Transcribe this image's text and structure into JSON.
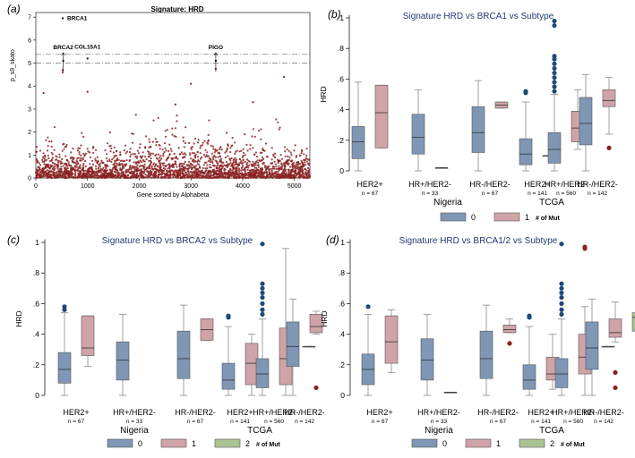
{
  "colors": {
    "c0": "#7f97b5",
    "c1": "#cfa3a8",
    "c2": "#a9c395",
    "outlier0": "#1d4a7a",
    "outlier1": "#8b2323",
    "scatter": "#8b2323",
    "title": "#1f3b75"
  },
  "chart_data": [
    {
      "id": "a",
      "type": "scatter",
      "panel_label": "(a)",
      "title": "Signature: HRD",
      "xlabel": "Gene sorted by Alphabeta",
      "ylabel": "p_s9_skato",
      "xlim": [
        0,
        5300
      ],
      "ylim": [
        0,
        7.2
      ],
      "xticks": [
        0,
        1000,
        2000,
        3000,
        4000,
        5000
      ],
      "yticks": [
        0,
        1,
        2,
        3,
        4,
        5,
        6,
        7
      ],
      "thresholds": [
        5.0,
        5.4
      ],
      "points_note": "approximately 5300 genes, most with values between 0 and 2",
      "highlights": [
        {
          "gene": "BRCA1",
          "x": 520,
          "y": 6.95
        },
        {
          "gene": "BRCA2",
          "x": 530,
          "y": 5.1
        },
        {
          "gene": "COL15A1",
          "x": 1000,
          "y": 5.2
        },
        {
          "gene": "PIGO",
          "x": 3480,
          "y": 5.1
        }
      ],
      "notable_points": [
        {
          "x": 520,
          "y": 4.7
        },
        {
          "x": 520,
          "y": 4.6
        },
        {
          "x": 1000,
          "y": 3.75
        },
        {
          "x": 150,
          "y": 3.7
        },
        {
          "x": 3000,
          "y": 4.1
        },
        {
          "x": 3480,
          "y": 4.75
        },
        {
          "x": 4800,
          "y": 4.4
        },
        {
          "x": 2700,
          "y": 3.2
        },
        {
          "x": 4200,
          "y": 3.3
        }
      ]
    },
    {
      "id": "b",
      "type": "box",
      "panel_label": "(b)",
      "title": "Signature HRD vs BRCA1 vs Subtype",
      "ylabel": "HRD",
      "ylim": [
        0,
        1
      ],
      "yticks": [
        "0",
        ".2",
        ".4",
        ".6",
        ".8",
        "1"
      ],
      "categories": [
        "HER2+",
        "HR+/HER2-",
        "HR-/HER2-",
        "HER2+",
        "HR+/HER2-",
        "HR-/HER2-"
      ],
      "counts": [
        "n = 67",
        "n = 33",
        "n = 67",
        "n = 141",
        "n = 560",
        "n = 142"
      ],
      "groups": [
        "Nigeria",
        "TCGA"
      ],
      "legend": [
        "0",
        "1"
      ],
      "legend_title": "# of Mut",
      "series": [
        {
          "name": "0",
          "boxes": [
            {
              "min": 0,
              "q1": 0.08,
              "med": 0.19,
              "q3": 0.29,
              "max": 0.58
            },
            {
              "min": 0,
              "q1": 0.11,
              "med": 0.22,
              "q3": 0.37,
              "max": 0.53
            },
            {
              "min": 0,
              "q1": 0.12,
              "med": 0.25,
              "q3": 0.42,
              "max": 0.59
            },
            {
              "min": 0,
              "q1": 0.04,
              "med": 0.11,
              "q3": 0.21,
              "max": 0.45,
              "outliers": [
                0.51,
                0.52
              ]
            },
            {
              "min": 0,
              "q1": 0.05,
              "med": 0.14,
              "q3": 0.25,
              "max": 0.5,
              "outliers": [
                0.52,
                0.55,
                0.58,
                0.61,
                0.64,
                0.67,
                0.7,
                0.73,
                0.75,
                0.95,
                0.98
              ]
            },
            {
              "min": 0,
              "q1": 0.17,
              "med": 0.31,
              "q3": 0.48,
              "max": 0.63
            }
          ]
        },
        {
          "name": "1",
          "boxes": [
            {
              "min": 0.15,
              "q1": 0.15,
              "med": 0.38,
              "q3": 0.56,
              "max": 0.56
            },
            {
              "min": 0.02,
              "q1": 0.02,
              "med": 0.02,
              "q3": 0.02,
              "max": 0.02
            },
            {
              "min": 0.41,
              "q1": 0.41,
              "med": 0.43,
              "q3": 0.45,
              "max": 0.45
            },
            {
              "min": 0.1,
              "q1": 0.1,
              "med": 0.1,
              "q3": 0.1,
              "max": 0.1
            },
            {
              "min": 0.14,
              "q1": 0.19,
              "med": 0.28,
              "q3": 0.39,
              "max": 0.53
            },
            {
              "min": 0.24,
              "q1": 0.42,
              "med": 0.46,
              "q3": 0.53,
              "max": 0.61,
              "outliers": [
                0.15
              ]
            }
          ]
        }
      ]
    },
    {
      "id": "c",
      "type": "box",
      "panel_label": "(c)",
      "title": "Signature HRD vs BRCA2 vs Subtype",
      "ylabel": "HRD",
      "ylim": [
        0,
        1
      ],
      "yticks": [
        "0",
        ".2",
        ".4",
        ".6",
        ".8",
        "1"
      ],
      "categories": [
        "HER2+",
        "HR+/HER2-",
        "HR-/HER2-",
        "HER2+",
        "HR+/HER2-",
        "HR-/HER2-"
      ],
      "counts": [
        "n = 67",
        "n = 33",
        "n = 67",
        "n = 141",
        "n = 560",
        "n = 142"
      ],
      "groups": [
        "Nigeria",
        "TCGA"
      ],
      "legend": [
        "0",
        "1",
        "2"
      ],
      "legend_title": "# of Mut",
      "series": [
        {
          "name": "0",
          "boxes": [
            {
              "min": 0,
              "q1": 0.08,
              "med": 0.17,
              "q3": 0.28,
              "max": 0.54,
              "outliers": [
                0.56,
                0.58
              ]
            },
            {
              "min": 0,
              "q1": 0.1,
              "med": 0.23,
              "q3": 0.35,
              "max": 0.53
            },
            {
              "min": 0,
              "q1": 0.11,
              "med": 0.24,
              "q3": 0.42,
              "max": 0.59
            },
            {
              "min": 0,
              "q1": 0.04,
              "med": 0.1,
              "q3": 0.21,
              "max": 0.45,
              "outliers": [
                0.51,
                0.52
              ]
            },
            {
              "min": 0,
              "q1": 0.05,
              "med": 0.14,
              "q3": 0.24,
              "max": 0.5,
              "outliers": [
                0.53,
                0.56,
                0.6,
                0.64,
                0.67,
                0.7,
                0.73,
                0.99
              ]
            },
            {
              "min": 0,
              "q1": 0.19,
              "med": 0.32,
              "q3": 0.48,
              "max": 0.63
            }
          ]
        },
        {
          "name": "1",
          "boxes": [
            {
              "min": 0.19,
              "q1": 0.26,
              "med": 0.31,
              "q3": 0.52,
              "max": 0.52
            },
            null,
            {
              "min": 0.36,
              "q1": 0.36,
              "med": 0.43,
              "q3": 0.5,
              "max": 0.5
            },
            {
              "min": 0,
              "q1": 0.07,
              "med": 0.21,
              "q3": 0.34,
              "max": 0.4
            },
            {
              "min": 0,
              "q1": 0.07,
              "med": 0.24,
              "q3": 0.44,
              "max": 0.96
            },
            {
              "min": 0.4,
              "q1": 0.41,
              "med": 0.45,
              "q3": 0.53,
              "max": 0.55,
              "outliers": [
                0.05
              ]
            }
          ]
        },
        {
          "name": "2",
          "boxes": [
            null,
            null,
            null,
            null,
            {
              "min": 0.32,
              "q1": 0.32,
              "med": 0.32,
              "q3": 0.32,
              "max": 0.32
            },
            null
          ]
        }
      ]
    },
    {
      "id": "d",
      "type": "box",
      "panel_label": "(d)",
      "title": "Signature HRD vs BRCA1/2 vs Subtype",
      "ylabel": "HRD",
      "ylim": [
        0,
        1
      ],
      "yticks": [
        "0",
        ".2",
        ".4",
        ".6",
        ".8",
        "1"
      ],
      "categories": [
        "HER2+",
        "HR+/HER2-",
        "HR-/HER2-",
        "HER2+",
        "HR+/HER2-",
        "HR-/HER2-"
      ],
      "counts": [
        "n = 67",
        "n = 33",
        "n = 67",
        "n = 141",
        "n = 560",
        "n = 142"
      ],
      "groups": [
        "Nigeria",
        "TCGA"
      ],
      "legend": [
        "0",
        "1",
        "2"
      ],
      "legend_title": "# of Mut",
      "series": [
        {
          "name": "0",
          "boxes": [
            {
              "min": 0,
              "q1": 0.07,
              "med": 0.17,
              "q3": 0.27,
              "max": 0.53,
              "outliers": [
                0.58
              ]
            },
            {
              "min": 0,
              "q1": 0.1,
              "med": 0.23,
              "q3": 0.37,
              "max": 0.53
            },
            {
              "min": 0,
              "q1": 0.11,
              "med": 0.24,
              "q3": 0.42,
              "max": 0.59
            },
            {
              "min": 0,
              "q1": 0.04,
              "med": 0.1,
              "q3": 0.2,
              "max": 0.45,
              "outliers": [
                0.51,
                0.52
              ]
            },
            {
              "min": 0,
              "q1": 0.05,
              "med": 0.14,
              "q3": 0.24,
              "max": 0.5,
              "outliers": [
                0.53,
                0.56,
                0.6,
                0.64,
                0.67,
                0.7,
                0.73,
                0.99
              ]
            },
            {
              "min": 0,
              "q1": 0.17,
              "med": 0.31,
              "q3": 0.48,
              "max": 0.63
            }
          ]
        },
        {
          "name": "1",
          "boxes": [
            {
              "min": 0.15,
              "q1": 0.21,
              "med": 0.35,
              "q3": 0.52,
              "max": 0.56
            },
            {
              "min": 0.02,
              "q1": 0.02,
              "med": 0.02,
              "q3": 0.02,
              "max": 0.02
            },
            {
              "min": 0.41,
              "q1": 0.41,
              "med": 0.43,
              "q3": 0.46,
              "max": 0.5,
              "outliers": [
                0.34
              ]
            },
            {
              "min": 0.04,
              "q1": 0.1,
              "med": 0.14,
              "q3": 0.25,
              "max": 0.4
            },
            {
              "min": 0,
              "q1": 0.14,
              "med": 0.25,
              "q3": 0.4,
              "max": 0.58,
              "outliers": [
                0.96,
                0.97
              ]
            },
            {
              "min": 0.35,
              "q1": 0.38,
              "med": 0.41,
              "q3": 0.5,
              "max": 0.61,
              "outliers": [
                0.15,
                0.05
              ]
            }
          ]
        },
        {
          "name": "2",
          "boxes": [
            null,
            null,
            null,
            null,
            {
              "min": 0.32,
              "q1": 0.32,
              "med": 0.32,
              "q3": 0.32,
              "max": 0.32
            },
            {
              "min": 0.42,
              "q1": 0.42,
              "med": 0.51,
              "q3": 0.54,
              "max": 0.54
            }
          ]
        }
      ]
    }
  ]
}
